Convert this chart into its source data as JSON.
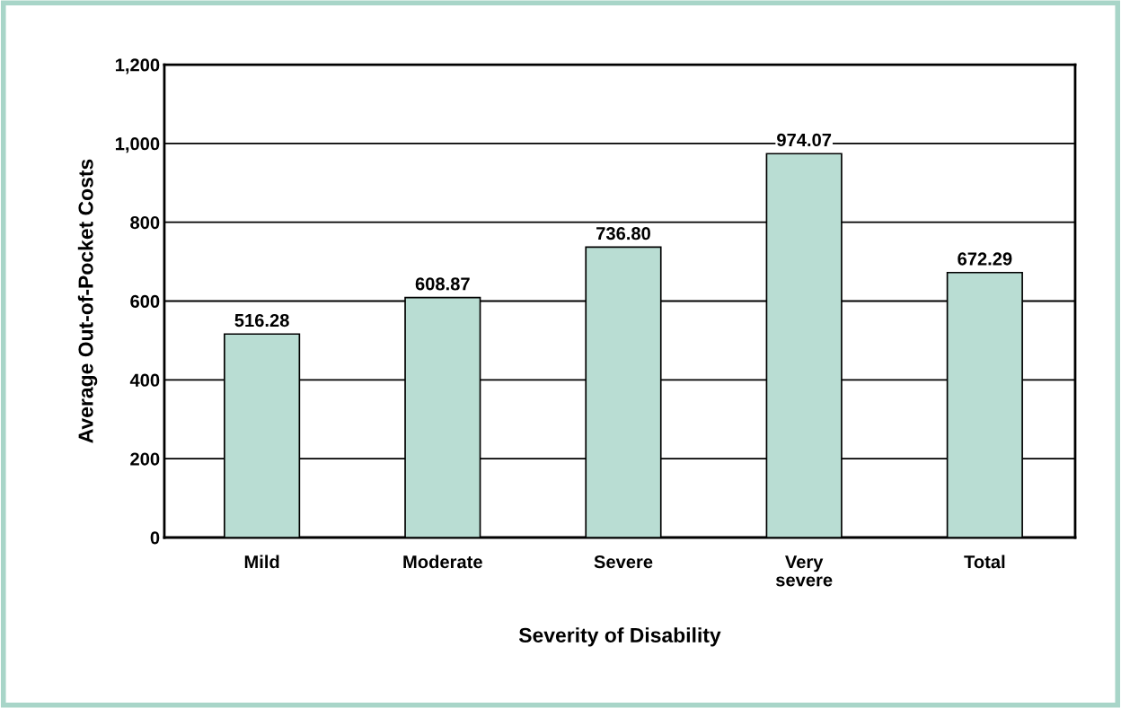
{
  "chart_data": {
    "type": "bar",
    "xlabel": "Severity of Disability",
    "ylabel": "Average Out-of-Pocket Costs",
    "categories": [
      "Mild",
      "Moderate",
      "Severe",
      "Very\nsevere",
      "Total"
    ],
    "values": [
      516.28,
      608.87,
      736.8,
      974.07,
      672.29
    ],
    "value_labels": [
      "516.28",
      "608.87",
      "736.80",
      "974.07",
      "672.29"
    ],
    "color": "#b9ddd3",
    "ylim": [
      0,
      1200
    ],
    "yticks": [
      0,
      200,
      400,
      600,
      800,
      {
        "value": 1000,
        "label": "1,000"
      },
      {
        "value": 1200,
        "label": "1,200"
      }
    ],
    "grid": "y",
    "legend": false
  }
}
